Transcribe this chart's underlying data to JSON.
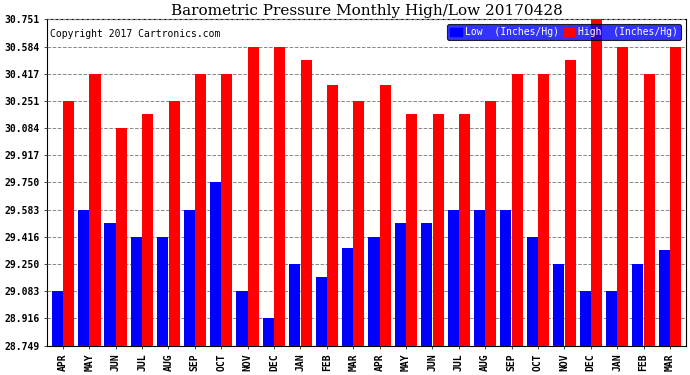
{
  "title": "Barometric Pressure Monthly High/Low 20170428",
  "copyright": "Copyright 2017 Cartronics.com",
  "months": [
    "APR",
    "MAY",
    "JUN",
    "JUL",
    "AUG",
    "SEP",
    "OCT",
    "NOV",
    "DEC",
    "JAN",
    "FEB",
    "MAR",
    "APR",
    "MAY",
    "JUN",
    "JUL",
    "AUG",
    "SEP",
    "OCT",
    "NOV",
    "DEC",
    "JAN",
    "FEB",
    "MAR"
  ],
  "high": [
    30.251,
    30.417,
    30.084,
    30.167,
    30.251,
    30.417,
    30.417,
    30.584,
    30.584,
    30.5,
    30.35,
    30.251,
    30.35,
    30.167,
    30.167,
    30.167,
    30.251,
    30.417,
    30.417,
    30.5,
    30.751,
    30.584,
    30.417,
    30.584
  ],
  "low": [
    29.083,
    29.583,
    29.5,
    29.416,
    29.416,
    29.583,
    29.75,
    29.083,
    28.916,
    29.25,
    29.167,
    29.35,
    29.416,
    29.5,
    29.5,
    29.583,
    29.583,
    29.583,
    29.416,
    29.25,
    29.083,
    29.083,
    29.25,
    29.333
  ],
  "ymin": 28.749,
  "ymax": 30.751,
  "yticks": [
    28.749,
    28.916,
    29.083,
    29.25,
    29.416,
    29.583,
    29.75,
    29.917,
    30.084,
    30.251,
    30.417,
    30.584,
    30.751
  ],
  "bar_color_low": "#0000ff",
  "bar_color_high": "#ff0000",
  "background_color": "#ffffff",
  "plot_background": "#ffffff",
  "grid_color": "#888888",
  "title_fontsize": 11,
  "copyright_fontsize": 7,
  "tick_fontsize": 7,
  "legend_low_label": "Low  (Inches/Hg)",
  "legend_high_label": "High  (Inches/Hg)"
}
